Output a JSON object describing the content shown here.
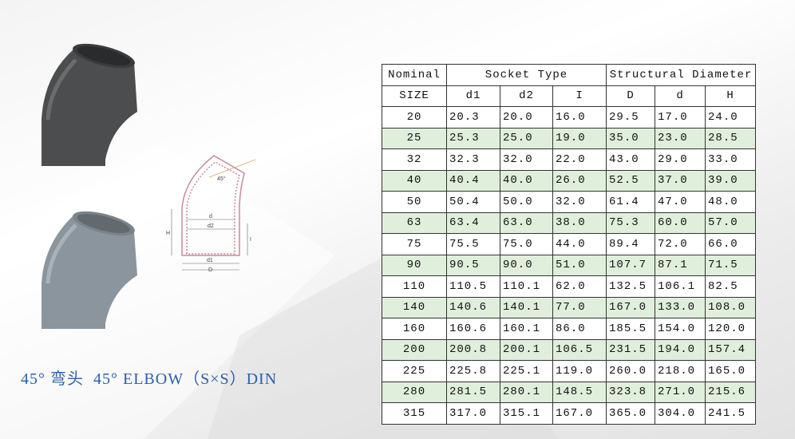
{
  "caption": "45° 弯头  45° ELBOW（S×S）DIN",
  "diagram": {
    "labels": [
      "45°",
      "d",
      "d2",
      "H",
      "I",
      "d1",
      "D"
    ]
  },
  "table": {
    "header_top": [
      "Nominal",
      "Socket Type",
      "Structural Diameter"
    ],
    "header_sub": [
      "SIZE",
      "d1",
      "d2",
      "I",
      "D",
      "d",
      "H"
    ],
    "rows": [
      [
        "20",
        "20.3",
        "20.0",
        "16.0",
        "29.5",
        "17.0",
        "24.0"
      ],
      [
        "25",
        "25.3",
        "25.0",
        "19.0",
        "35.0",
        "23.0",
        "28.5"
      ],
      [
        "32",
        "32.3",
        "32.0",
        "22.0",
        "43.0",
        "29.0",
        "33.0"
      ],
      [
        "40",
        "40.4",
        "40.0",
        "26.0",
        "52.5",
        "37.0",
        "39.0"
      ],
      [
        "50",
        "50.4",
        "50.0",
        "32.0",
        "61.4",
        "47.0",
        "48.0"
      ],
      [
        "63",
        "63.4",
        "63.0",
        "38.0",
        "75.3",
        "60.0",
        "57.0"
      ],
      [
        "75",
        "75.5",
        "75.0",
        "44.0",
        "89.4",
        "72.0",
        "66.0"
      ],
      [
        "90",
        "90.5",
        "90.0",
        "51.0",
        "107.7",
        "87.1",
        "71.5"
      ],
      [
        "110",
        "110.5",
        "110.1",
        "62.0",
        "132.5",
        "106.1",
        "82.5"
      ],
      [
        "140",
        "140.6",
        "140.1",
        "77.0",
        "167.0",
        "133.0",
        "108.0"
      ],
      [
        "160",
        "160.6",
        "160.1",
        "86.0",
        "185.5",
        "154.0",
        "120.0"
      ],
      [
        "200",
        "200.8",
        "200.1",
        "106.5",
        "231.5",
        "194.0",
        "157.4"
      ],
      [
        "225",
        "225.8",
        "225.1",
        "119.0",
        "260.0",
        "218.0",
        "165.0"
      ],
      [
        "280",
        "281.5",
        "280.1",
        "148.5",
        "323.8",
        "271.0",
        "215.6"
      ],
      [
        "315",
        "317.0",
        "315.1",
        "167.0",
        "365.0",
        "304.0",
        "241.5"
      ]
    ]
  }
}
